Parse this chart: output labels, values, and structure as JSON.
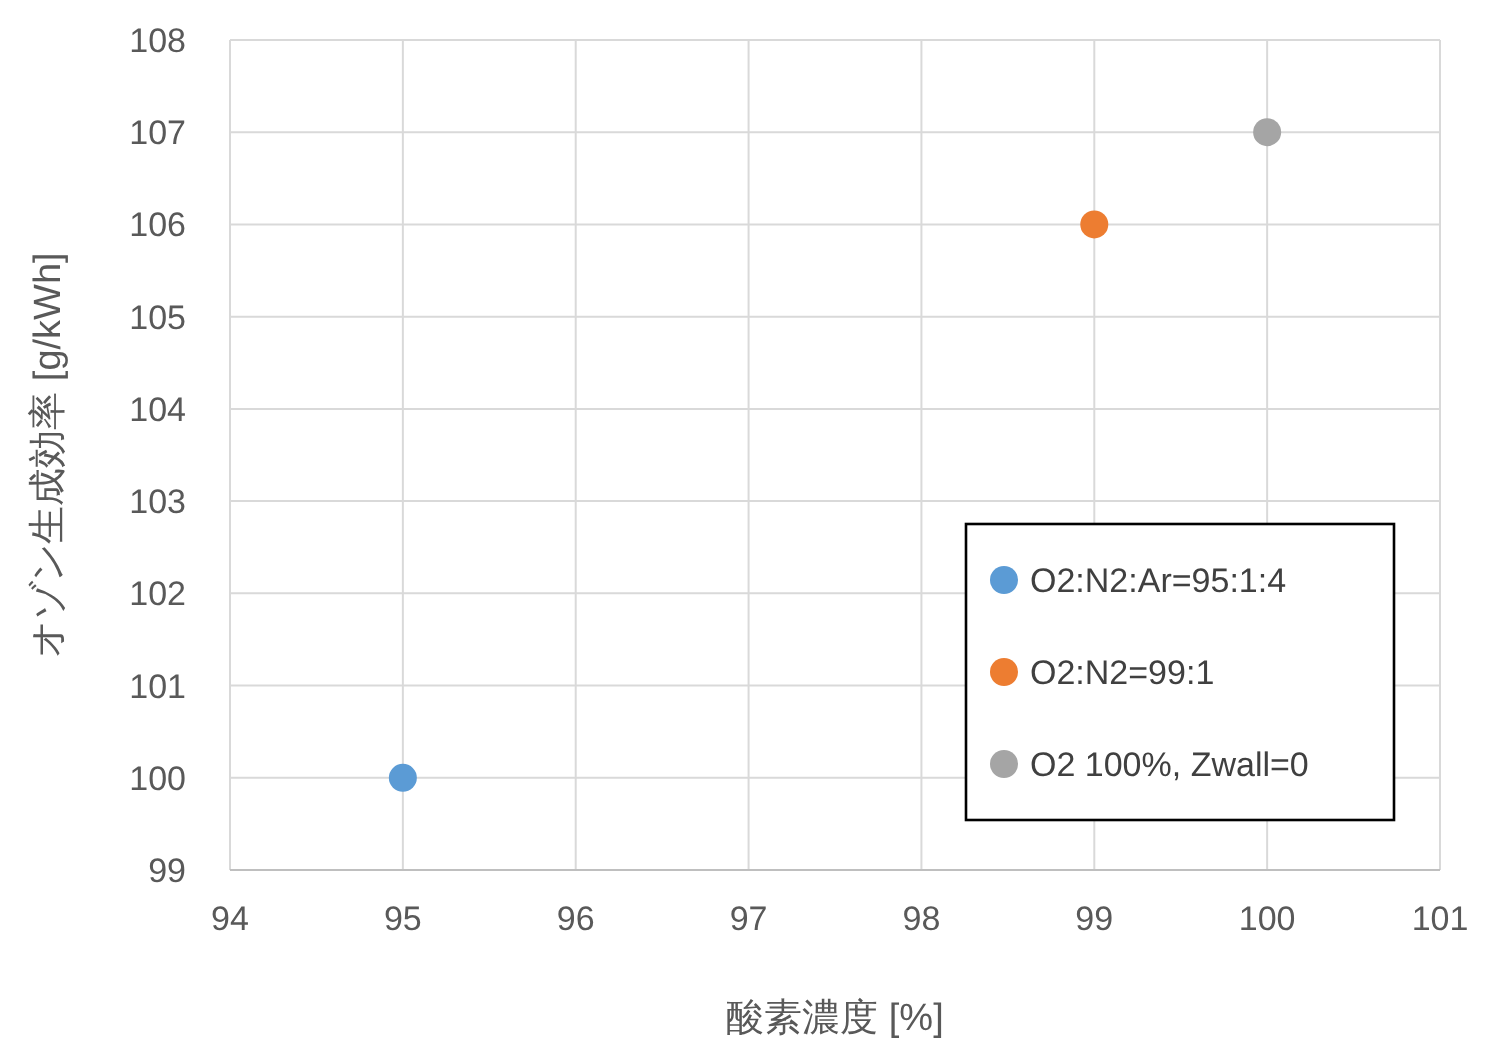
{
  "chart_data": {
    "type": "scatter",
    "xlabel": "酸素濃度 [%]",
    "ylabel": "オゾン生成効率 [g/kWh]",
    "xlim": [
      94,
      101
    ],
    "xticks": [
      94,
      95,
      96,
      97,
      98,
      99,
      100,
      101
    ],
    "ylim": [
      99,
      108
    ],
    "yticks": [
      99,
      100,
      101,
      102,
      103,
      104,
      105,
      106,
      107,
      108
    ],
    "grid": true,
    "legend": "bottom right",
    "marker": "circle",
    "series": [
      {
        "name": "O2:N2:Ar=95:1:4",
        "color": "#5b9bd5",
        "x": [
          95
        ],
        "values": [
          100
        ]
      },
      {
        "name": "O2:N2=99:1",
        "color": "#ed7d31",
        "x": [
          99
        ],
        "values": [
          106
        ]
      },
      {
        "name": "O2 100%, Zwall=0",
        "color": "#a5a5a5",
        "x": [
          100
        ],
        "values": [
          107
        ]
      }
    ]
  }
}
